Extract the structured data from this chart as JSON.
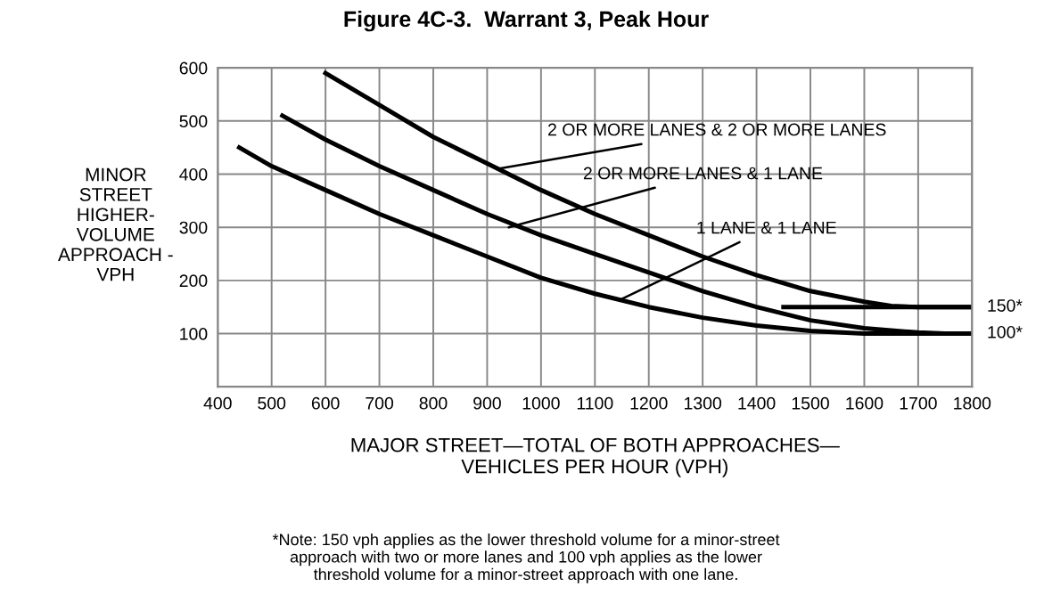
{
  "chart_data": {
    "type": "line",
    "title": "Figure 4C-3.  Warrant 3, Peak Hour",
    "xlabel": "MAJOR STREET—TOTAL OF BOTH APPROACHES—\nVEHICLES PER HOUR (VPH)",
    "ylabel": "MINOR\nSTREET\nHIGHER-\nVOLUME\nAPPROACH -\nVPH",
    "series": [
      {
        "color": "#000000",
        "x": [
          600,
          700,
          800,
          900,
          1000,
          1100,
          1200,
          1300,
          1400,
          1500,
          1600,
          1650,
          1700,
          1800
        ],
        "values": [
          590,
          530,
          470,
          420,
          370,
          325,
          285,
          245,
          210,
          180,
          160,
          152,
          150,
          150
        ]
      },
      {
        "color": "#000000",
        "x": [
          520,
          600,
          700,
          800,
          900,
          1000,
          1100,
          1200,
          1300,
          1400,
          1500,
          1600,
          1700,
          1750,
          1800
        ],
        "values": [
          510,
          465,
          415,
          370,
          325,
          285,
          250,
          215,
          180,
          150,
          125,
          110,
          102,
          100,
          100
        ]
      },
      {
        "color": "#000000",
        "x": [
          440,
          500,
          600,
          700,
          800,
          900,
          1000,
          1100,
          1200,
          1300,
          1400,
          1500,
          1600,
          1800
        ],
        "values": [
          450,
          415,
          370,
          325,
          285,
          245,
          205,
          175,
          150,
          130,
          115,
          105,
          100,
          100
        ]
      },
      {
        "color": "#000000",
        "x": [
          1450,
          1800
        ],
        "values": [
          150,
          150
        ]
      }
    ],
    "annotations": [
      {
        "text": "2 OR MORE LANES & 2 OR MORE LANES",
        "x": 920,
        "y": 410
      },
      {
        "text": "2 OR MORE LANES & 1 LANE",
        "x": 940,
        "y": 300
      },
      {
        "text": "1 LANE & 1 LANE",
        "x": 1150,
        "y": 165
      },
      {
        "text": "150*",
        "x": 1800,
        "y": 150
      },
      {
        "text": "100*",
        "x": 1800,
        "y": 100
      },
      "*Note: 150 vph applies as the lower threshold volume for a minor-street\napproach with two or more lanes and 100 vph applies as the lower\nthreshold volume for a minor-street approach with one lane."
    ],
    "xlim": [
      400,
      1800
    ],
    "ylim": [
      0,
      600
    ],
    "xticks": [
      400,
      500,
      600,
      700,
      800,
      900,
      1000,
      1100,
      1200,
      1300,
      1400,
      1500,
      1600,
      1700,
      1800
    ],
    "yticks": [
      {
        "value": 0,
        "label": null
      },
      100,
      200,
      300,
      400,
      500,
      600
    ],
    "grid": true,
    "legend": false,
    "marker": "none",
    "line_style": "solid"
  }
}
